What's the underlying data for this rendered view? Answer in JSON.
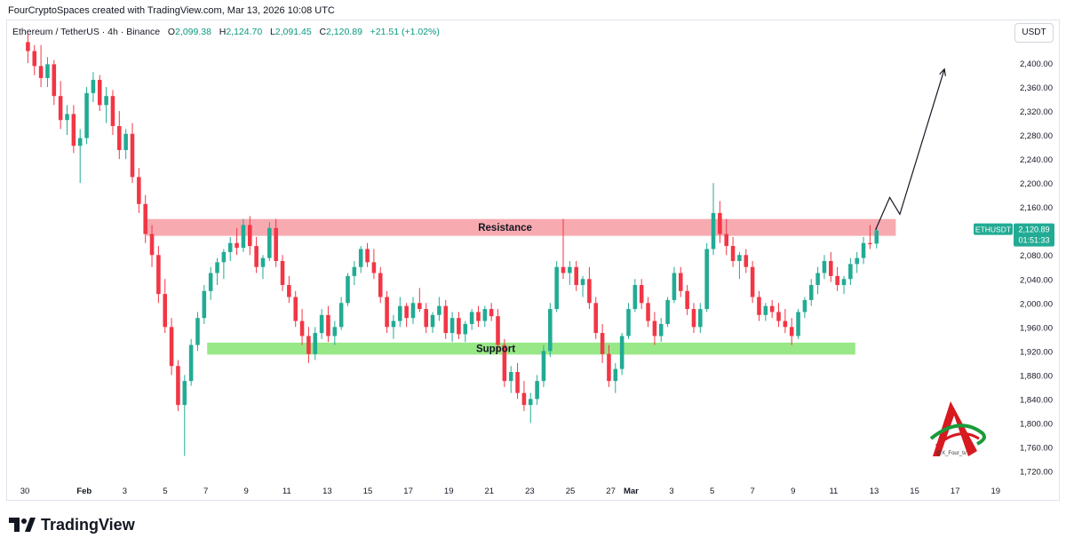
{
  "header": {
    "creator_text": "FourCryptoSpaces created with TradingView.com, Mar 13, 2026 10:08 UTC"
  },
  "legend": {
    "symbol": "Ethereum / TetherUS · 4h · Binance",
    "o_label": "O",
    "o_value": "2,099.38",
    "h_label": "H",
    "h_value": "2,124.70",
    "l_label": "L",
    "l_value": "2,091.45",
    "c_label": "C",
    "c_value": "2,120.89",
    "change": "+21.51 (+1.02%)"
  },
  "currency_button": "USDT",
  "price_tag": {
    "symbol": "ETHUSDT",
    "price": "2,120.89",
    "countdown": "01:51:33"
  },
  "footer": {
    "brand": "TradingView"
  },
  "watermark": {
    "handle": "@X_Four_tv"
  },
  "colors": {
    "up": "#22ab94",
    "down": "#f23645",
    "resistance": "#f7a1a8",
    "support": "#8ee67a",
    "tag_bg": "#22ab94",
    "axis_text": "#131722"
  },
  "chart_data": {
    "type": "candlestick",
    "symbol": "ETHUSDT",
    "timeframe": "4h",
    "y_axis": {
      "ticks": [
        1720,
        1760,
        1800,
        1840,
        1880,
        1920,
        1960,
        2000,
        2040,
        2080,
        2120,
        2160,
        2200,
        2240,
        2280,
        2320,
        2360,
        2400
      ],
      "tick_labels": [
        "1,720.00",
        "1,760.00",
        "1,800.00",
        "1,840.00",
        "1,880.00",
        "1,920.00",
        "1,960.00",
        "2,000.00",
        "2,040.00",
        "2,080.00",
        "2,120.00",
        "2,160.00",
        "2,200.00",
        "2,240.00",
        "2,280.00",
        "2,320.00",
        "2,360.00",
        "2,400.00"
      ]
    },
    "x_axis": {
      "labels": [
        "30",
        "Feb",
        "3",
        "5",
        "7",
        "9",
        "11",
        "13",
        "15",
        "17",
        "19",
        "21",
        "23",
        "25",
        "27",
        "Mar",
        "3",
        "5",
        "7",
        "9",
        "11",
        "13",
        "15",
        "17",
        "19"
      ],
      "bold_labels": [
        "Feb",
        "Mar"
      ]
    },
    "zones": [
      {
        "label": "Resistance",
        "low": 2112,
        "high": 2140,
        "start": "Feb 5",
        "end": "Mar 14"
      },
      {
        "label": "Support",
        "low": 1914,
        "high": 1934,
        "start": "Feb 8",
        "end": "Mar 12"
      }
    ],
    "projection": [
      {
        "date": "Mar 13",
        "price": 2122
      },
      {
        "date": "Mar 13.7",
        "price": 2176
      },
      {
        "date": "Mar 14.2",
        "price": 2148
      },
      {
        "date": "Mar 16.4",
        "price": 2390
      }
    ],
    "candles": [
      {
        "o": 2435,
        "h": 2448,
        "l": 2400,
        "c": 2420
      },
      {
        "o": 2420,
        "h": 2430,
        "l": 2380,
        "c": 2395
      },
      {
        "o": 2395,
        "h": 2430,
        "l": 2360,
        "c": 2375
      },
      {
        "o": 2375,
        "h": 2410,
        "l": 2360,
        "c": 2398
      },
      {
        "o": 2398,
        "h": 2405,
        "l": 2330,
        "c": 2345
      },
      {
        "o": 2345,
        "h": 2370,
        "l": 2290,
        "c": 2305
      },
      {
        "o": 2305,
        "h": 2330,
        "l": 2280,
        "c": 2315
      },
      {
        "o": 2315,
        "h": 2330,
        "l": 2250,
        "c": 2262
      },
      {
        "o": 2262,
        "h": 2290,
        "l": 2200,
        "c": 2275
      },
      {
        "o": 2275,
        "h": 2360,
        "l": 2265,
        "c": 2350
      },
      {
        "o": 2350,
        "h": 2385,
        "l": 2335,
        "c": 2372
      },
      {
        "o": 2372,
        "h": 2380,
        "l": 2320,
        "c": 2330
      },
      {
        "o": 2330,
        "h": 2360,
        "l": 2300,
        "c": 2345
      },
      {
        "o": 2345,
        "h": 2355,
        "l": 2280,
        "c": 2295
      },
      {
        "o": 2295,
        "h": 2320,
        "l": 2240,
        "c": 2255
      },
      {
        "o": 2255,
        "h": 2290,
        "l": 2240,
        "c": 2282
      },
      {
        "o": 2282,
        "h": 2300,
        "l": 2200,
        "c": 2210
      },
      {
        "o": 2210,
        "h": 2225,
        "l": 2150,
        "c": 2165
      },
      {
        "o": 2165,
        "h": 2180,
        "l": 2100,
        "c": 2115
      },
      {
        "o": 2115,
        "h": 2130,
        "l": 2060,
        "c": 2080
      },
      {
        "o": 2080,
        "h": 2095,
        "l": 2000,
        "c": 2015
      },
      {
        "o": 2015,
        "h": 2040,
        "l": 1950,
        "c": 1960
      },
      {
        "o": 1960,
        "h": 1975,
        "l": 1880,
        "c": 1895
      },
      {
        "o": 1895,
        "h": 1905,
        "l": 1820,
        "c": 1830
      },
      {
        "o": 1830,
        "h": 1880,
        "l": 1745,
        "c": 1870
      },
      {
        "o": 1870,
        "h": 1940,
        "l": 1862,
        "c": 1930
      },
      {
        "o": 1930,
        "h": 1985,
        "l": 1920,
        "c": 1975
      },
      {
        "o": 1975,
        "h": 2030,
        "l": 1965,
        "c": 2020
      },
      {
        "o": 2020,
        "h": 2060,
        "l": 2005,
        "c": 2050
      },
      {
        "o": 2050,
        "h": 2075,
        "l": 2030,
        "c": 2068
      },
      {
        "o": 2068,
        "h": 2090,
        "l": 2040,
        "c": 2085
      },
      {
        "o": 2085,
        "h": 2110,
        "l": 2070,
        "c": 2100
      },
      {
        "o": 2100,
        "h": 2125,
        "l": 2080,
        "c": 2092
      },
      {
        "o": 2092,
        "h": 2140,
        "l": 2085,
        "c": 2130
      },
      {
        "o": 2130,
        "h": 2145,
        "l": 2080,
        "c": 2095
      },
      {
        "o": 2095,
        "h": 2110,
        "l": 2050,
        "c": 2060
      },
      {
        "o": 2060,
        "h": 2080,
        "l": 2040,
        "c": 2075
      },
      {
        "o": 2075,
        "h": 2135,
        "l": 2070,
        "c": 2125
      },
      {
        "o": 2125,
        "h": 2140,
        "l": 2060,
        "c": 2070
      },
      {
        "o": 2070,
        "h": 2080,
        "l": 2020,
        "c": 2030
      },
      {
        "o": 2030,
        "h": 2045,
        "l": 2000,
        "c": 2010
      },
      {
        "o": 2010,
        "h": 2020,
        "l": 1960,
        "c": 1970
      },
      {
        "o": 1970,
        "h": 1990,
        "l": 1930,
        "c": 1945
      },
      {
        "o": 1945,
        "h": 1960,
        "l": 1900,
        "c": 1915
      },
      {
        "o": 1915,
        "h": 1960,
        "l": 1905,
        "c": 1950
      },
      {
        "o": 1950,
        "h": 1990,
        "l": 1940,
        "c": 1980
      },
      {
        "o": 1980,
        "h": 1995,
        "l": 1935,
        "c": 1945
      },
      {
        "o": 1945,
        "h": 1970,
        "l": 1930,
        "c": 1960
      },
      {
        "o": 1960,
        "h": 2010,
        "l": 1955,
        "c": 2000
      },
      {
        "o": 2000,
        "h": 2050,
        "l": 1995,
        "c": 2045
      },
      {
        "o": 2045,
        "h": 2070,
        "l": 2030,
        "c": 2060
      },
      {
        "o": 2060,
        "h": 2095,
        "l": 2050,
        "c": 2090
      },
      {
        "o": 2090,
        "h": 2100,
        "l": 2060,
        "c": 2068
      },
      {
        "o": 2068,
        "h": 2090,
        "l": 2040,
        "c": 2050
      },
      {
        "o": 2050,
        "h": 2060,
        "l": 2000,
        "c": 2010
      },
      {
        "o": 2010,
        "h": 2020,
        "l": 1950,
        "c": 1960
      },
      {
        "o": 1960,
        "h": 1980,
        "l": 1940,
        "c": 1970
      },
      {
        "o": 1970,
        "h": 2010,
        "l": 1960,
        "c": 1995
      },
      {
        "o": 1995,
        "h": 2000,
        "l": 1960,
        "c": 1975
      },
      {
        "o": 1975,
        "h": 2010,
        "l": 1965,
        "c": 2000
      },
      {
        "o": 2000,
        "h": 2025,
        "l": 1985,
        "c": 1990
      },
      {
        "o": 1990,
        "h": 2000,
        "l": 1950,
        "c": 1960
      },
      {
        "o": 1960,
        "h": 1985,
        "l": 1950,
        "c": 1980
      },
      {
        "o": 1980,
        "h": 2010,
        "l": 1970,
        "c": 1995
      },
      {
        "o": 1995,
        "h": 2005,
        "l": 1940,
        "c": 1950
      },
      {
        "o": 1950,
        "h": 1985,
        "l": 1935,
        "c": 1975
      },
      {
        "o": 1975,
        "h": 1985,
        "l": 1940,
        "c": 1948
      },
      {
        "o": 1948,
        "h": 1970,
        "l": 1935,
        "c": 1965
      },
      {
        "o": 1965,
        "h": 1990,
        "l": 1955,
        "c": 1985
      },
      {
        "o": 1985,
        "h": 1995,
        "l": 1960,
        "c": 1970
      },
      {
        "o": 1970,
        "h": 1995,
        "l": 1960,
        "c": 1990
      },
      {
        "o": 1990,
        "h": 2000,
        "l": 1970,
        "c": 1978
      },
      {
        "o": 1978,
        "h": 1990,
        "l": 1920,
        "c": 1930
      },
      {
        "o": 1930,
        "h": 1940,
        "l": 1860,
        "c": 1870
      },
      {
        "o": 1870,
        "h": 1895,
        "l": 1850,
        "c": 1885
      },
      {
        "o": 1885,
        "h": 1900,
        "l": 1840,
        "c": 1850
      },
      {
        "o": 1850,
        "h": 1870,
        "l": 1820,
        "c": 1830
      },
      {
        "o": 1830,
        "h": 1850,
        "l": 1800,
        "c": 1840
      },
      {
        "o": 1840,
        "h": 1880,
        "l": 1830,
        "c": 1870
      },
      {
        "o": 1870,
        "h": 1930,
        "l": 1860,
        "c": 1920
      },
      {
        "o": 1920,
        "h": 2000,
        "l": 1910,
        "c": 1990
      },
      {
        "o": 1990,
        "h": 2070,
        "l": 1985,
        "c": 2060
      },
      {
        "o": 2060,
        "h": 2140,
        "l": 2040,
        "c": 2050
      },
      {
        "o": 2050,
        "h": 2070,
        "l": 2030,
        "c": 2060
      },
      {
        "o": 2060,
        "h": 2070,
        "l": 2020,
        "c": 2030
      },
      {
        "o": 2030,
        "h": 2045,
        "l": 2010,
        "c": 2040
      },
      {
        "o": 2040,
        "h": 2060,
        "l": 1990,
        "c": 2000
      },
      {
        "o": 2000,
        "h": 2010,
        "l": 1940,
        "c": 1950
      },
      {
        "o": 1950,
        "h": 1965,
        "l": 1900,
        "c": 1915
      },
      {
        "o": 1915,
        "h": 1930,
        "l": 1860,
        "c": 1870
      },
      {
        "o": 1870,
        "h": 1900,
        "l": 1850,
        "c": 1890
      },
      {
        "o": 1890,
        "h": 1950,
        "l": 1880,
        "c": 1945
      },
      {
        "o": 1945,
        "h": 2000,
        "l": 1940,
        "c": 1990
      },
      {
        "o": 1990,
        "h": 2040,
        "l": 1985,
        "c": 2030
      },
      {
        "o": 2030,
        "h": 2040,
        "l": 1990,
        "c": 2000
      },
      {
        "o": 2000,
        "h": 2010,
        "l": 1960,
        "c": 1970
      },
      {
        "o": 1970,
        "h": 1985,
        "l": 1930,
        "c": 1945
      },
      {
        "o": 1945,
        "h": 1975,
        "l": 1935,
        "c": 1965
      },
      {
        "o": 1965,
        "h": 2010,
        "l": 1960,
        "c": 2005
      },
      {
        "o": 2005,
        "h": 2060,
        "l": 2000,
        "c": 2050
      },
      {
        "o": 2050,
        "h": 2060,
        "l": 2010,
        "c": 2020
      },
      {
        "o": 2020,
        "h": 2030,
        "l": 1980,
        "c": 1990
      },
      {
        "o": 1990,
        "h": 2000,
        "l": 1950,
        "c": 1960
      },
      {
        "o": 1960,
        "h": 2000,
        "l": 1950,
        "c": 1990
      },
      {
        "o": 1990,
        "h": 2100,
        "l": 1985,
        "c": 2090
      },
      {
        "o": 2090,
        "h": 2200,
        "l": 2080,
        "c": 2150
      },
      {
        "o": 2150,
        "h": 2170,
        "l": 2100,
        "c": 2115
      },
      {
        "o": 2115,
        "h": 2140,
        "l": 2080,
        "c": 2095
      },
      {
        "o": 2095,
        "h": 2110,
        "l": 2060,
        "c": 2070
      },
      {
        "o": 2070,
        "h": 2085,
        "l": 2040,
        "c": 2080
      },
      {
        "o": 2080,
        "h": 2090,
        "l": 2050,
        "c": 2060
      },
      {
        "o": 2060,
        "h": 2070,
        "l": 2000,
        "c": 2010
      },
      {
        "o": 2010,
        "h": 2020,
        "l": 1970,
        "c": 1980
      },
      {
        "o": 1980,
        "h": 2000,
        "l": 1970,
        "c": 1995
      },
      {
        "o": 1995,
        "h": 2005,
        "l": 1975,
        "c": 1985
      },
      {
        "o": 1985,
        "h": 2000,
        "l": 1960,
        "c": 1970
      },
      {
        "o": 1970,
        "h": 1990,
        "l": 1950,
        "c": 1960
      },
      {
        "o": 1960,
        "h": 1975,
        "l": 1930,
        "c": 1945
      },
      {
        "o": 1945,
        "h": 1990,
        "l": 1940,
        "c": 1985
      },
      {
        "o": 1985,
        "h": 2010,
        "l": 1975,
        "c": 2005
      },
      {
        "o": 2005,
        "h": 2040,
        "l": 1995,
        "c": 2030
      },
      {
        "o": 2030,
        "h": 2060,
        "l": 2015,
        "c": 2050
      },
      {
        "o": 2050,
        "h": 2080,
        "l": 2040,
        "c": 2070
      },
      {
        "o": 2070,
        "h": 2085,
        "l": 2035,
        "c": 2045
      },
      {
        "o": 2045,
        "h": 2060,
        "l": 2020,
        "c": 2030
      },
      {
        "o": 2030,
        "h": 2045,
        "l": 2015,
        "c": 2040
      },
      {
        "o": 2040,
        "h": 2075,
        "l": 2030,
        "c": 2065
      },
      {
        "o": 2065,
        "h": 2085,
        "l": 2050,
        "c": 2075
      },
      {
        "o": 2075,
        "h": 2110,
        "l": 2065,
        "c": 2100
      },
      {
        "o": 2100,
        "h": 2130,
        "l": 2090,
        "c": 2098
      },
      {
        "o": 2099,
        "h": 2125,
        "l": 2091,
        "c": 2121
      }
    ]
  }
}
